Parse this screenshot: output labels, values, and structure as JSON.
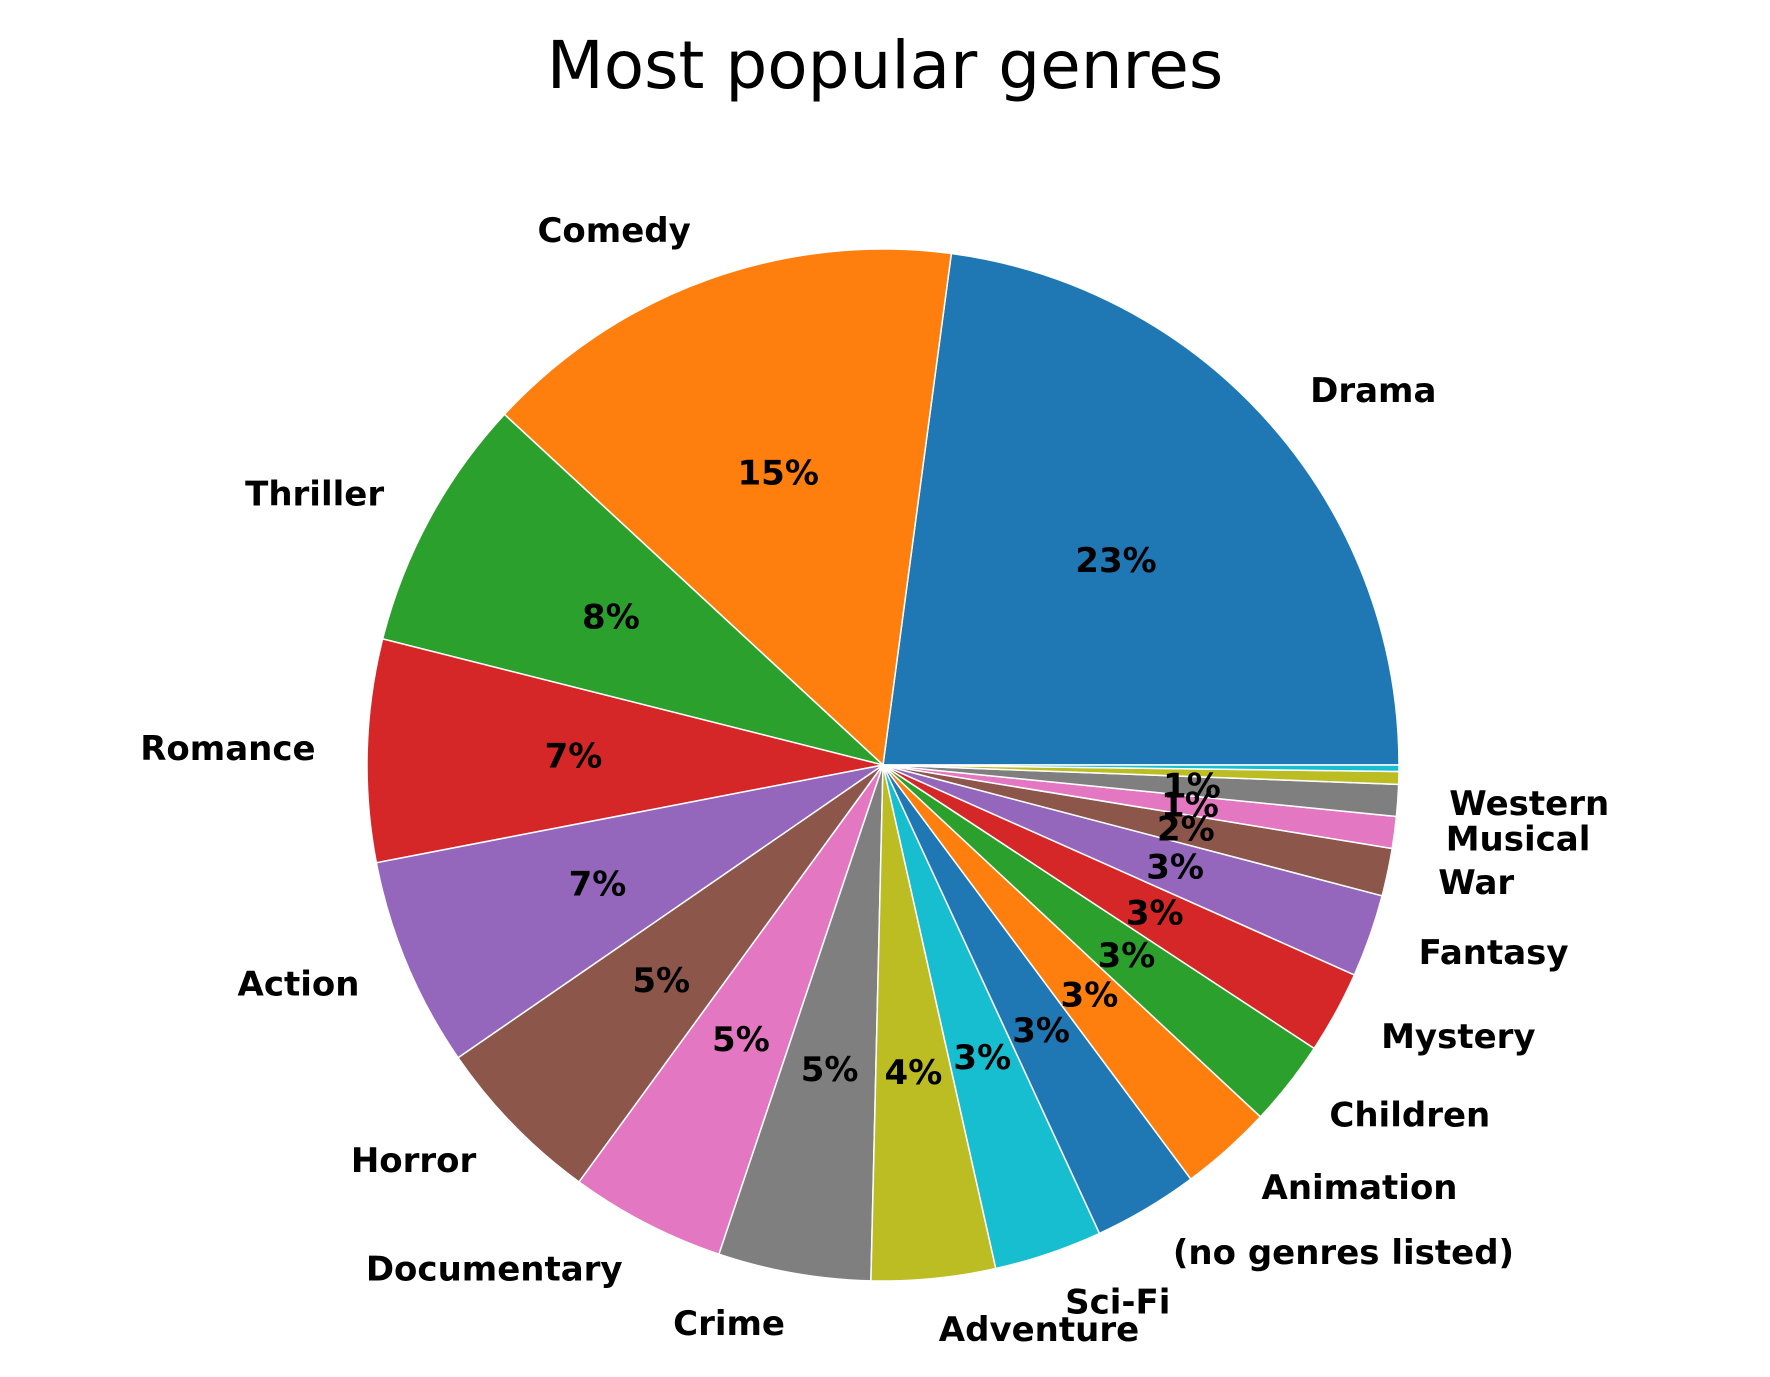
{
  "chart_data": {
    "type": "pie",
    "title": "Most popular genres",
    "start_angle_deg": 0,
    "direction": "counterclockwise",
    "label_format": "{pct}%",
    "slices": [
      {
        "label": "Drama",
        "value": 23.0,
        "pct_label": "23%",
        "color": "#1f77b4"
      },
      {
        "label": "Comedy",
        "value": 15.3,
        "pct_label": "15%",
        "color": "#ff7f0e"
      },
      {
        "label": "Thriller",
        "value": 8.0,
        "pct_label": "8%",
        "color": "#2ca02c"
      },
      {
        "label": "Romance",
        "value": 7.0,
        "pct_label": "7%",
        "color": "#d62728"
      },
      {
        "label": "Action",
        "value": 6.6,
        "pct_label": "7%",
        "color": "#9467bd"
      },
      {
        "label": "Horror",
        "value": 5.4,
        "pct_label": "5%",
        "color": "#8c564b"
      },
      {
        "label": "Documentary",
        "value": 4.9,
        "pct_label": "5%",
        "color": "#e377c2"
      },
      {
        "label": "Crime",
        "value": 4.8,
        "pct_label": "5%",
        "color": "#7f7f7f"
      },
      {
        "label": "Adventure",
        "value": 3.9,
        "pct_label": "4%",
        "color": "#bcbd22"
      },
      {
        "label": "Sci-Fi",
        "value": 3.4,
        "pct_label": "3%",
        "color": "#17becf"
      },
      {
        "label": "(no genres listed)",
        "value": 3.3,
        "pct_label": "3%",
        "color": "#1f77b4"
      },
      {
        "label": "Animation",
        "value": 2.9,
        "pct_label": "3%",
        "color": "#ff7f0e"
      },
      {
        "label": "Children",
        "value": 2.7,
        "pct_label": "3%",
        "color": "#2ca02c"
      },
      {
        "label": "Mystery",
        "value": 2.6,
        "pct_label": "3%",
        "color": "#d62728"
      },
      {
        "label": "Fantasy",
        "value": 2.6,
        "pct_label": "3%",
        "color": "#9467bd"
      },
      {
        "label": "War",
        "value": 1.5,
        "pct_label": "2%",
        "color": "#8c564b"
      },
      {
        "label": "Musical",
        "value": 1.0,
        "pct_label": "1%",
        "color": "#e377c2"
      },
      {
        "label": "Western",
        "value": 1.0,
        "pct_label": "1%",
        "color": "#7f7f7f"
      },
      {
        "label": "",
        "value": 0.4,
        "pct_label": "",
        "color": "#bcbd22"
      },
      {
        "label": "",
        "value": 0.2,
        "pct_label": "",
        "color": "#17becf"
      }
    ]
  }
}
